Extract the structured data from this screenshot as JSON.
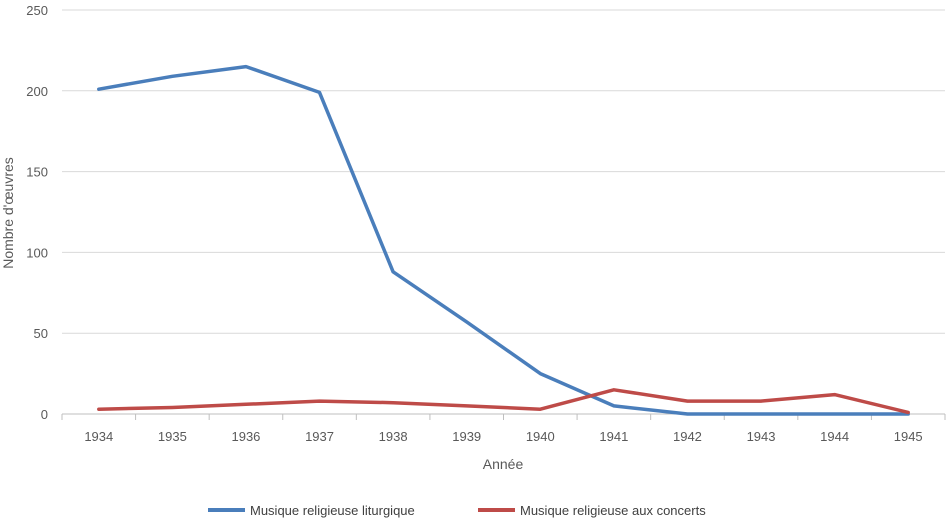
{
  "chart_data": {
    "type": "line",
    "categories": [
      "1934",
      "1935",
      "1936",
      "1937",
      "1938",
      "1939",
      "1940",
      "1941",
      "1942",
      "1943",
      "1944",
      "1945"
    ],
    "series": [
      {
        "name": "Musique religieuse liturgique",
        "color": "#4a7ebb",
        "values": [
          201,
          209,
          215,
          199,
          88,
          57,
          25,
          5,
          0,
          0,
          0,
          0
        ]
      },
      {
        "name": "Musique religieuse aux concerts",
        "color": "#be4b48",
        "values": [
          3,
          4,
          6,
          8,
          7,
          5,
          3,
          15,
          8,
          8,
          12,
          1
        ]
      }
    ],
    "title": "",
    "xlabel": "Année",
    "ylabel": "Nombre d'œuvres",
    "ylim": [
      0,
      250
    ],
    "yticks": [
      0,
      50,
      100,
      150,
      200,
      250
    ],
    "grid": true,
    "legend_position": "bottom"
  }
}
